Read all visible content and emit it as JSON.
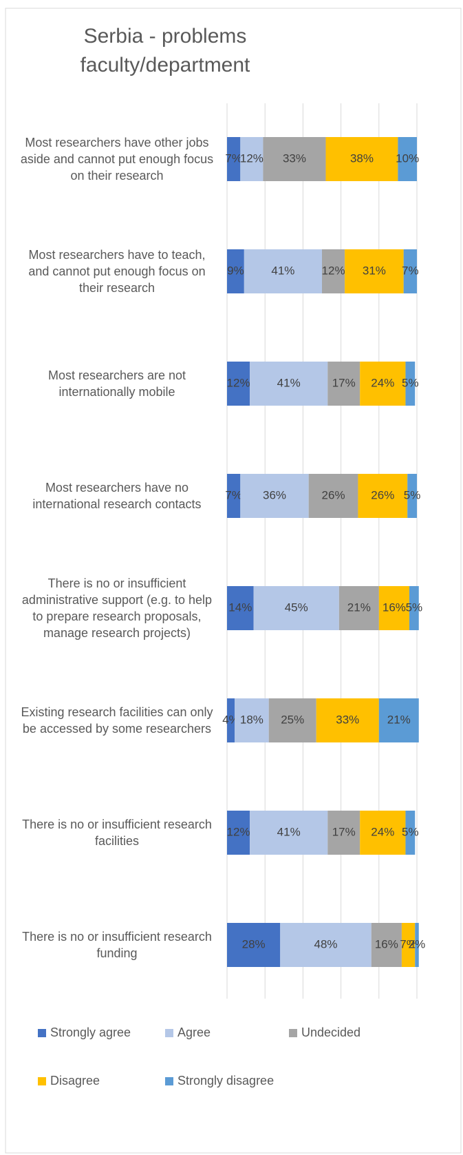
{
  "chart_data": {
    "type": "stacked_bar_horizontal",
    "title": "Serbia - problems faculty/department",
    "categories": [
      "Most researchers have other jobs aside and cannot put enough focus on their research",
      "Most researchers have to teach, and cannot put enough focus on their research",
      "Most researchers are not internationally mobile",
      "Most researchers have no international research contacts",
      "There is no or insufficient administrative support (e.g. to help to prepare research proposals, manage research projects)",
      "Existing research facilities can only be accessed by some researchers",
      "There is no or insufficient research facilities",
      "There is no or insufficient research funding"
    ],
    "series": [
      {
        "name": "Strongly agree",
        "color": "#4472c4",
        "values": [
          7,
          9,
          12,
          7,
          14,
          4,
          12,
          28
        ],
        "value_labels": [
          "7%",
          "9%",
          "12%",
          "7%",
          "14%",
          "4%",
          "12%",
          "28%"
        ]
      },
      {
        "name": "Agree",
        "color": "#b4c7e7",
        "values": [
          12,
          41,
          41,
          36,
          45,
          18,
          41,
          48
        ],
        "value_labels": [
          "12%",
          "41%",
          "41%",
          "36%",
          "45%",
          "18%",
          "41%",
          "48%"
        ]
      },
      {
        "name": "Undecided",
        "color": "#a5a5a5",
        "values": [
          33,
          12,
          17,
          26,
          21,
          25,
          17,
          16
        ],
        "value_labels": [
          "33%",
          "12%",
          "17%",
          "26%",
          "21%",
          "25%",
          "17%",
          "16%"
        ]
      },
      {
        "name": "Disagree",
        "color": "#ffc000",
        "values": [
          38,
          31,
          24,
          26,
          16,
          33,
          24,
          7
        ],
        "value_labels": [
          "38%",
          "31%",
          "24%",
          "26%",
          "16%",
          "33%",
          "24%",
          "7%"
        ]
      },
      {
        "name": "Strongly disagree",
        "color": "#5b9bd5",
        "values": [
          10,
          7,
          5,
          5,
          5,
          21,
          5,
          2
        ],
        "value_labels": [
          "10%",
          "7%",
          "5%",
          "5%",
          "5%",
          "21%",
          "5%",
          "2%"
        ]
      }
    ],
    "xlim": [
      0,
      100
    ],
    "xticks": [
      0,
      20,
      40,
      60,
      80,
      100
    ],
    "grid": true
  }
}
